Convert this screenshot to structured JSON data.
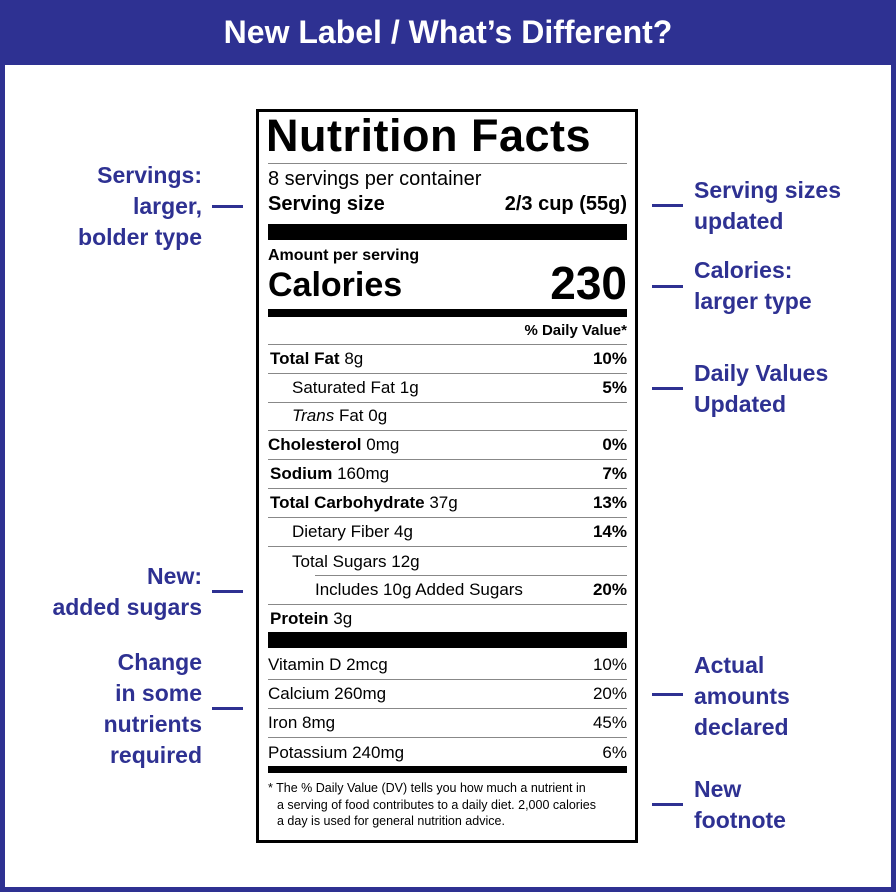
{
  "header": {
    "title": "New Label / What’s Different?"
  },
  "label": {
    "title": "Nutrition Facts",
    "servings": "8 servings per container",
    "serving_size_label": "Serving size",
    "serving_size_value": "2/3 cup (55g)",
    "amount_per_serving": "Amount per serving",
    "calories_label": "Calories",
    "calories_value": "230",
    "dv_header": "% Daily Value*",
    "nutrients": [
      {
        "name": "Total Fat",
        "amount": "8g",
        "dv": "10%"
      },
      {
        "name": "Saturated Fat",
        "amount": "1g",
        "dv": "5%"
      },
      {
        "qualifier": "Trans",
        "name": "Fat",
        "amount": "0g"
      },
      {
        "name": "Cholesterol",
        "amount": "0mg",
        "dv": "0%"
      },
      {
        "name": "Sodium",
        "amount": "160mg",
        "dv": "7%"
      },
      {
        "name": "Total Carbohydrate",
        "amount": "37g",
        "dv": "13%"
      },
      {
        "name": "Dietary Fiber",
        "amount": "4g",
        "dv": "14%"
      },
      {
        "name": "Total Sugars",
        "amount": "12g"
      },
      {
        "name": "Includes 10g Added Sugars",
        "dv": "20%"
      },
      {
        "name": "Protein",
        "amount": "3g"
      }
    ],
    "vitamins": [
      {
        "name": "Vitamin D 2mcg",
        "dv": "10%"
      },
      {
        "name": "Calcium 260mg",
        "dv": "20%"
      },
      {
        "name": "Iron 8mg",
        "dv": "45%"
      },
      {
        "name": "Potassium 240mg",
        "dv": "6%"
      }
    ],
    "footnote": [
      "* The % Daily Value (DV) tells you how much a nutrient in",
      "a serving of food contributes to a daily diet. 2,000 calories",
      "a day is used for general nutrition advice."
    ]
  },
  "annotations": {
    "left": [
      {
        "lines": [
          "Servings:",
          "larger,",
          "bolder type"
        ]
      },
      {
        "lines": [
          "New:",
          "added sugars"
        ]
      },
      {
        "lines": [
          "Change",
          "in some",
          "nutrients",
          "required"
        ]
      }
    ],
    "right": [
      {
        "lines": [
          "Serving sizes",
          "updated"
        ]
      },
      {
        "lines": [
          "Calories:",
          "larger type"
        ]
      },
      {
        "lines": [
          "Daily Values",
          "Updated"
        ]
      },
      {
        "lines": [
          "Actual",
          "amounts",
          "declared"
        ]
      },
      {
        "lines": [
          "New",
          "footnote"
        ]
      }
    ]
  }
}
